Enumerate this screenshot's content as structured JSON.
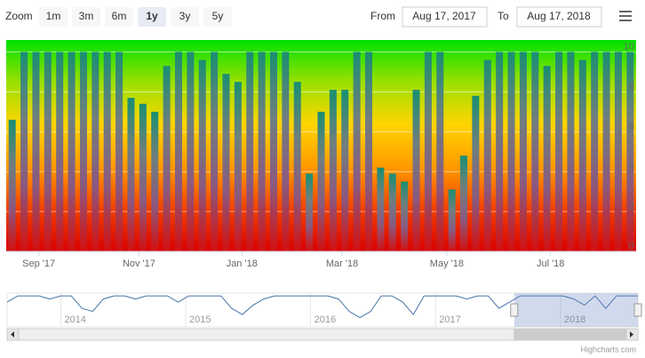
{
  "chart_data": {
    "type": "bar",
    "zoom_label": "Zoom",
    "zoom_buttons": [
      "1m",
      "3m",
      "6m",
      "1y",
      "3y",
      "5y"
    ],
    "zoom_selected": 3,
    "from_label": "From",
    "from_value": "Aug 17, 2017",
    "to_label": "To",
    "to_value": "Aug 17, 2018",
    "credit": "Highcharts.com",
    "categories": [
      null,
      null,
      null,
      null,
      null,
      null,
      null,
      null,
      null,
      null,
      null,
      null,
      null,
      null,
      null,
      null,
      null,
      null,
      null,
      null,
      null,
      null,
      null,
      null,
      null,
      null,
      null,
      null,
      null,
      null,
      null,
      null,
      null,
      null,
      null,
      null,
      null,
      null,
      null,
      null,
      null,
      null,
      null,
      null,
      null,
      null,
      null,
      null,
      null,
      null,
      null,
      null,
      null
    ],
    "values": [
      6.6,
      10,
      10,
      10,
      10,
      10,
      10,
      10,
      10,
      10,
      7.7,
      7.4,
      7.0,
      9.3,
      10,
      10,
      9.6,
      10,
      8.9,
      8.5,
      10,
      10,
      10,
      10,
      8.5,
      3.9,
      7.0,
      8.1,
      8.1,
      10,
      10,
      4.2,
      3.9,
      3.5,
      8.1,
      10,
      10,
      3.1,
      4.8,
      7.8,
      9.6,
      10,
      10,
      10,
      10,
      9.3,
      10,
      10,
      9.6,
      10,
      10,
      10,
      10
    ],
    "xlim": [
      -0.5,
      52.5
    ],
    "xticks": [
      {
        "value": 2.24,
        "label": "Sep '17"
      },
      {
        "value": 10.67,
        "label": "Nov '17"
      },
      {
        "value": 19.33,
        "label": "Jan '18"
      },
      {
        "value": 27.76,
        "label": "Mar '18"
      },
      {
        "value": 36.57,
        "label": "May '18"
      },
      {
        "value": 45.3,
        "label": "Jul '18"
      }
    ],
    "ylim": [
      0,
      10.6
    ],
    "yticks": [
      0,
      2,
      4,
      6,
      8,
      10
    ],
    "grid": true,
    "background_gradient": [
      "#00e000",
      "#9be000",
      "#ffd400",
      "#ff9a00",
      "#f04000",
      "#d80000"
    ],
    "bar_gradient": [
      "#1a8f72",
      "#6f7f7f",
      "#8a5a80",
      "#d41010"
    ],
    "navigator": {
      "color": "#4572a7",
      "xlim": [
        2013.57,
        2018.62
      ],
      "xticks": [
        {
          "value": 2014,
          "label": "2014"
        },
        {
          "value": 2015,
          "label": "2015"
        },
        {
          "value": 2016,
          "label": "2016"
        },
        {
          "value": 2017,
          "label": "2017"
        },
        {
          "value": 2018,
          "label": "2018"
        }
      ],
      "ylim": [
        0,
        10.6
      ],
      "selected": [
        2017.63,
        2018.62
      ],
      "values": [
        8,
        10,
        10,
        10,
        9,
        10,
        10,
        6,
        5,
        9,
        10,
        10,
        9,
        10,
        10,
        10,
        8,
        10,
        10,
        10,
        10,
        6,
        4,
        7,
        9,
        10,
        10,
        10,
        10,
        10,
        10,
        9,
        5,
        3,
        5,
        10,
        10,
        8,
        4,
        10,
        10,
        10,
        10,
        9,
        10,
        10,
        6,
        8,
        10,
        10,
        10,
        10,
        10,
        9,
        7,
        10,
        6,
        10,
        10,
        10
      ]
    }
  }
}
